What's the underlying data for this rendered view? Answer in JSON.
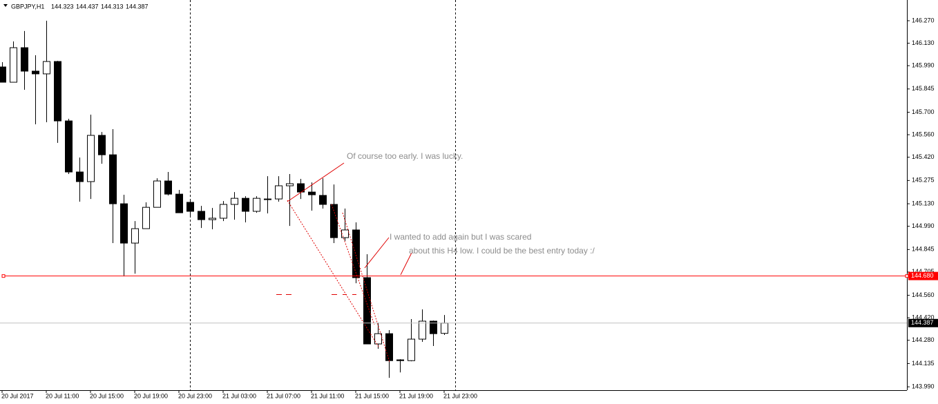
{
  "chart_data": {
    "type": "candlestick",
    "title": "GBPJPY,H1",
    "categories": [
      "20 Jul 2017",
      null,
      null,
      null,
      "20 Jul 11:00",
      null,
      null,
      null,
      "20 Jul 15:00",
      null,
      null,
      null,
      "20 Jul 19:00",
      null,
      null,
      null,
      "20 Jul 23:00",
      null,
      null,
      null,
      "21 Jul 03:00",
      null,
      null,
      null,
      "21 Jul 07:00",
      null,
      null,
      null,
      "21 Jul 11:00",
      null,
      null,
      null,
      "21 Jul 15:00",
      null,
      null,
      null,
      "21 Jul 19:00",
      null,
      null,
      null,
      "21 Jul 23:00"
    ],
    "open": [
      145.982,
      145.887,
      146.102,
      145.956,
      145.939,
      146.016,
      145.646,
      145.328,
      145.268,
      145.556,
      145.435,
      145.13,
      144.885,
      144.975,
      145.108,
      145.272,
      145.19,
      145.139,
      145.083,
      145.031,
      145.04,
      145.126,
      145.164,
      145.083,
      145.16,
      145.16,
      145.242,
      145.255,
      145.203,
      145.182,
      145.126,
      144.919,
      144.967,
      144.67,
      144.257,
      144.321,
      144.158,
      144.153,
      144.287,
      144.399,
      144.323
    ],
    "high": [
      146.012,
      146.141,
      146.206,
      146.055,
      146.27,
      146.02,
      145.659,
      145.418,
      145.685,
      145.577,
      145.595,
      145.186,
      145.022,
      145.139,
      145.289,
      145.328,
      145.216,
      145.16,
      145.117,
      145.104,
      145.147,
      145.203,
      145.177,
      145.177,
      145.302,
      145.302,
      145.315,
      145.285,
      145.263,
      145.289,
      145.25,
      145.1,
      145.014,
      144.816,
      144.39,
      144.343,
      144.162,
      144.412,
      144.472,
      144.403,
      144.437
    ],
    "low": [
      145.887,
      145.887,
      145.84,
      145.625,
      145.638,
      145.509,
      145.315,
      145.143,
      145.16,
      145.379,
      144.885,
      144.678,
      144.695,
      144.975,
      145.108,
      145.182,
      145.074,
      145.057,
      144.979,
      144.971,
      145.022,
      145.031,
      145.014,
      145.074,
      145.07,
      145.143,
      144.992,
      145.16,
      145.087,
      145.1,
      144.885,
      144.898,
      144.635,
      144.257,
      144.227,
      144.046,
      144.08,
      144.149,
      144.27,
      144.244,
      144.313
    ],
    "close": [
      145.887,
      146.102,
      145.956,
      145.939,
      146.016,
      145.646,
      145.328,
      145.268,
      145.556,
      145.435,
      145.13,
      144.885,
      144.975,
      145.108,
      145.272,
      145.19,
      145.074,
      145.083,
      145.031,
      145.04,
      145.126,
      145.164,
      145.083,
      145.164,
      145.16,
      145.242,
      145.255,
      145.203,
      145.186,
      145.126,
      144.919,
      144.967,
      144.67,
      144.257,
      144.321,
      144.153,
      144.153,
      144.287,
      144.399,
      144.321,
      144.387
    ],
    "ylim": [
      143.969,
      146.399
    ],
    "yticks": [
      {
        "value": 146.27,
        "label": "146.270"
      },
      {
        "value": 146.13,
        "label": "146.130"
      },
      {
        "value": 145.99,
        "label": "145.990"
      },
      {
        "value": 145.845,
        "label": "145.845"
      },
      {
        "value": 145.7,
        "label": "145.700"
      },
      {
        "value": 145.56,
        "label": "145.560"
      },
      {
        "value": 145.42,
        "label": "145.420"
      },
      {
        "value": 145.275,
        "label": "145.275"
      },
      {
        "value": 145.13,
        "label": "145.130"
      },
      {
        "value": 144.99,
        "label": "144.990"
      },
      {
        "value": 144.845,
        "label": "144.845"
      },
      {
        "value": 144.705,
        "label": "144.705"
      },
      {
        "value": 144.56,
        "label": "144.560"
      },
      {
        "value": 144.42,
        "label": "144.420"
      },
      {
        "value": 144.28,
        "label": "144.280"
      },
      {
        "value": 144.135,
        "label": "144.135"
      },
      {
        "value": 143.99,
        "label": "143.990"
      }
    ],
    "level": {
      "value": 144.68,
      "label": "144.680"
    },
    "level_color": "#ff0000",
    "annotations": [
      "Of course too early. I was lucky.",
      "I wanted to add again but I was scared",
      "about this H4 low. I could be the best entry today :/"
    ]
  }
}
